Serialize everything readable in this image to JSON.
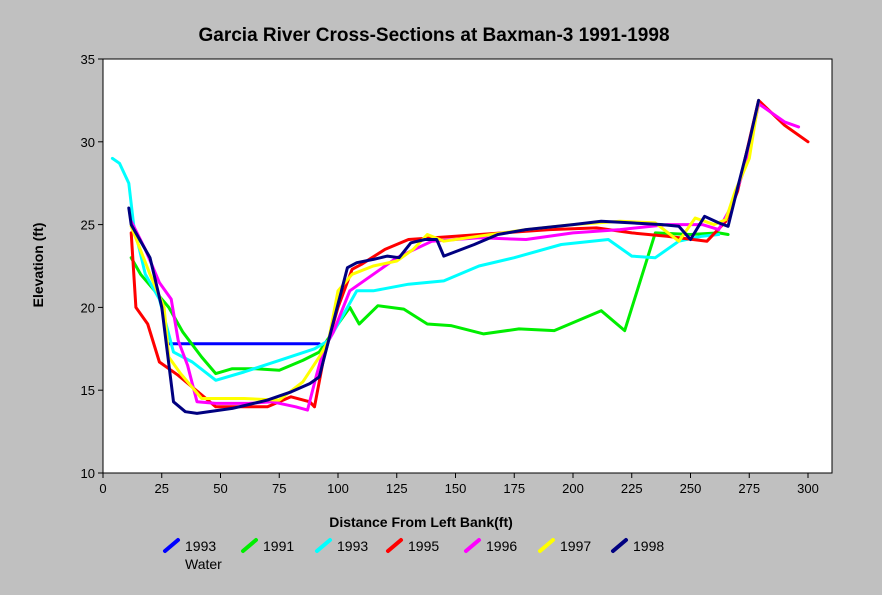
{
  "chart_data": {
    "type": "line",
    "title": "Garcia River Cross-Sections at Baxman-3 1991-1998",
    "xlabel": "Distance From Left Bank(ft)",
    "ylabel": "Elevation (ft)",
    "xlim": [
      0,
      300
    ],
    "ylim": [
      10,
      35
    ],
    "xticks": [
      0,
      25,
      50,
      75,
      100,
      125,
      150,
      175,
      200,
      225,
      250,
      275,
      300
    ],
    "yticks": [
      10,
      15,
      20,
      25,
      30,
      35
    ],
    "grid": false,
    "legend_position": "bottom",
    "series": [
      {
        "name": "1993 Water",
        "color": "#0000ff",
        "points": [
          [
            28,
            17.8
          ],
          [
            92,
            17.8
          ]
        ]
      },
      {
        "name": "1991",
        "color": "#00ee00",
        "points": [
          [
            12,
            23
          ],
          [
            16,
            22
          ],
          [
            22,
            21
          ],
          [
            28,
            20
          ],
          [
            34,
            18.5
          ],
          [
            42,
            17
          ],
          [
            48,
            16
          ],
          [
            55,
            16.3
          ],
          [
            65,
            16.3
          ],
          [
            75,
            16.2
          ],
          [
            85,
            16.8
          ],
          [
            92,
            17.3
          ],
          [
            100,
            19
          ],
          [
            105,
            20
          ],
          [
            109,
            19
          ],
          [
            117,
            20.1
          ],
          [
            128,
            19.9
          ],
          [
            138,
            19
          ],
          [
            148,
            18.9
          ],
          [
            162,
            18.4
          ],
          [
            177,
            18.7
          ],
          [
            192,
            18.6
          ],
          [
            212,
            19.8
          ],
          [
            222,
            18.6
          ],
          [
            235,
            24.5
          ],
          [
            250,
            24.4
          ],
          [
            262,
            24.5
          ],
          [
            266,
            24.4
          ]
        ]
      },
      {
        "name": "1993",
        "color": "#00ffff",
        "points": [
          [
            4,
            29
          ],
          [
            7,
            28.7
          ],
          [
            11,
            27.5
          ],
          [
            13,
            25
          ],
          [
            18,
            22
          ],
          [
            24,
            20.5
          ],
          [
            30,
            17.3
          ],
          [
            38,
            16.7
          ],
          [
            48,
            15.6
          ],
          [
            60,
            16.1
          ],
          [
            75,
            16.8
          ],
          [
            90,
            17.5
          ],
          [
            96,
            18
          ],
          [
            102,
            19.5
          ],
          [
            108,
            21
          ],
          [
            115,
            21
          ],
          [
            130,
            21.4
          ],
          [
            145,
            21.6
          ],
          [
            160,
            22.5
          ],
          [
            175,
            23
          ],
          [
            195,
            23.8
          ],
          [
            215,
            24.1
          ],
          [
            225,
            23.1
          ],
          [
            235,
            23
          ],
          [
            245,
            24
          ],
          [
            255,
            24.3
          ],
          [
            262,
            24.4
          ]
        ]
      },
      {
        "name": "1995",
        "color": "#ff0000",
        "points": [
          [
            12,
            24.5
          ],
          [
            14,
            20
          ],
          [
            19,
            19
          ],
          [
            24,
            16.7
          ],
          [
            32,
            15.9
          ],
          [
            48,
            14
          ],
          [
            70,
            14
          ],
          [
            80,
            14.6
          ],
          [
            88,
            14.3
          ],
          [
            90,
            14
          ],
          [
            94,
            17
          ],
          [
            100,
            20
          ],
          [
            106,
            22.3
          ],
          [
            110,
            22.6
          ],
          [
            120,
            23.5
          ],
          [
            130,
            24.1
          ],
          [
            150,
            24.3
          ],
          [
            170,
            24.5
          ],
          [
            190,
            24.7
          ],
          [
            210,
            24.8
          ],
          [
            225,
            24.5
          ],
          [
            240,
            24.3
          ],
          [
            257,
            24
          ],
          [
            265,
            25.2
          ],
          [
            270,
            27
          ],
          [
            279,
            32.5
          ],
          [
            290,
            31
          ],
          [
            300,
            30
          ]
        ]
      },
      {
        "name": "1996",
        "color": "#ff00ff",
        "points": [
          [
            12,
            25.2
          ],
          [
            18,
            23.5
          ],
          [
            24,
            21.5
          ],
          [
            29,
            20.5
          ],
          [
            32,
            18
          ],
          [
            36,
            16.5
          ],
          [
            40,
            14.3
          ],
          [
            48,
            14.2
          ],
          [
            62,
            14.2
          ],
          [
            72,
            14.3
          ],
          [
            82,
            14
          ],
          [
            87,
            13.8
          ],
          [
            91,
            16
          ],
          [
            94,
            17.5
          ],
          [
            98,
            18.5
          ],
          [
            105,
            21
          ],
          [
            115,
            22
          ],
          [
            125,
            23
          ],
          [
            140,
            24
          ],
          [
            160,
            24.2
          ],
          [
            180,
            24.1
          ],
          [
            200,
            24.5
          ],
          [
            220,
            24.7
          ],
          [
            240,
            25
          ],
          [
            255,
            25
          ],
          [
            262,
            24.7
          ],
          [
            267,
            26
          ],
          [
            274,
            28.8
          ],
          [
            279,
            32.3
          ],
          [
            290,
            31.2
          ],
          [
            296,
            30.9
          ]
        ]
      },
      {
        "name": "1997",
        "color": "#ffff00",
        "points": [
          [
            12,
            24.9
          ],
          [
            20,
            22
          ],
          [
            26,
            20
          ],
          [
            28,
            17
          ],
          [
            33,
            16
          ],
          [
            42,
            14.5
          ],
          [
            60,
            14.5
          ],
          [
            75,
            14.4
          ],
          [
            85,
            15.5
          ],
          [
            92,
            17
          ],
          [
            96,
            18
          ],
          [
            100,
            21
          ],
          [
            106,
            22
          ],
          [
            115,
            22.5
          ],
          [
            125,
            22.8
          ],
          [
            132,
            23.5
          ],
          [
            138,
            24.4
          ],
          [
            145,
            24
          ],
          [
            160,
            24.3
          ],
          [
            180,
            24.7
          ],
          [
            200,
            25
          ],
          [
            220,
            25.2
          ],
          [
            235,
            25.1
          ],
          [
            245,
            24
          ],
          [
            252,
            25.4
          ],
          [
            260,
            25
          ],
          [
            265,
            25.3
          ],
          [
            269,
            27
          ],
          [
            275,
            29
          ],
          [
            279,
            32.5
          ]
        ]
      },
      {
        "name": "1998",
        "color": "#000080",
        "points": [
          [
            11,
            26
          ],
          [
            12,
            25
          ],
          [
            16,
            24
          ],
          [
            20,
            23
          ],
          [
            25,
            20
          ],
          [
            30,
            14.3
          ],
          [
            35,
            13.7
          ],
          [
            40,
            13.6
          ],
          [
            55,
            13.9
          ],
          [
            70,
            14.4
          ],
          [
            80,
            14.9
          ],
          [
            88,
            15.4
          ],
          [
            92,
            15.8
          ],
          [
            96,
            18
          ],
          [
            100,
            20.2
          ],
          [
            104,
            22.4
          ],
          [
            108,
            22.7
          ],
          [
            115,
            22.9
          ],
          [
            121,
            23.1
          ],
          [
            126,
            23
          ],
          [
            131,
            23.9
          ],
          [
            137,
            24.1
          ],
          [
            142,
            24.1
          ],
          [
            145,
            23.1
          ],
          [
            158,
            23.8
          ],
          [
            168,
            24.4
          ],
          [
            180,
            24.7
          ],
          [
            200,
            25
          ],
          [
            212,
            25.2
          ],
          [
            225,
            25.1
          ],
          [
            238,
            25
          ],
          [
            245,
            24.9
          ],
          [
            250,
            24.1
          ],
          [
            256,
            25.5
          ],
          [
            262,
            25.1
          ],
          [
            266,
            24.9
          ],
          [
            270,
            27.2
          ],
          [
            275,
            30
          ],
          [
            279,
            32.5
          ]
        ]
      }
    ]
  }
}
